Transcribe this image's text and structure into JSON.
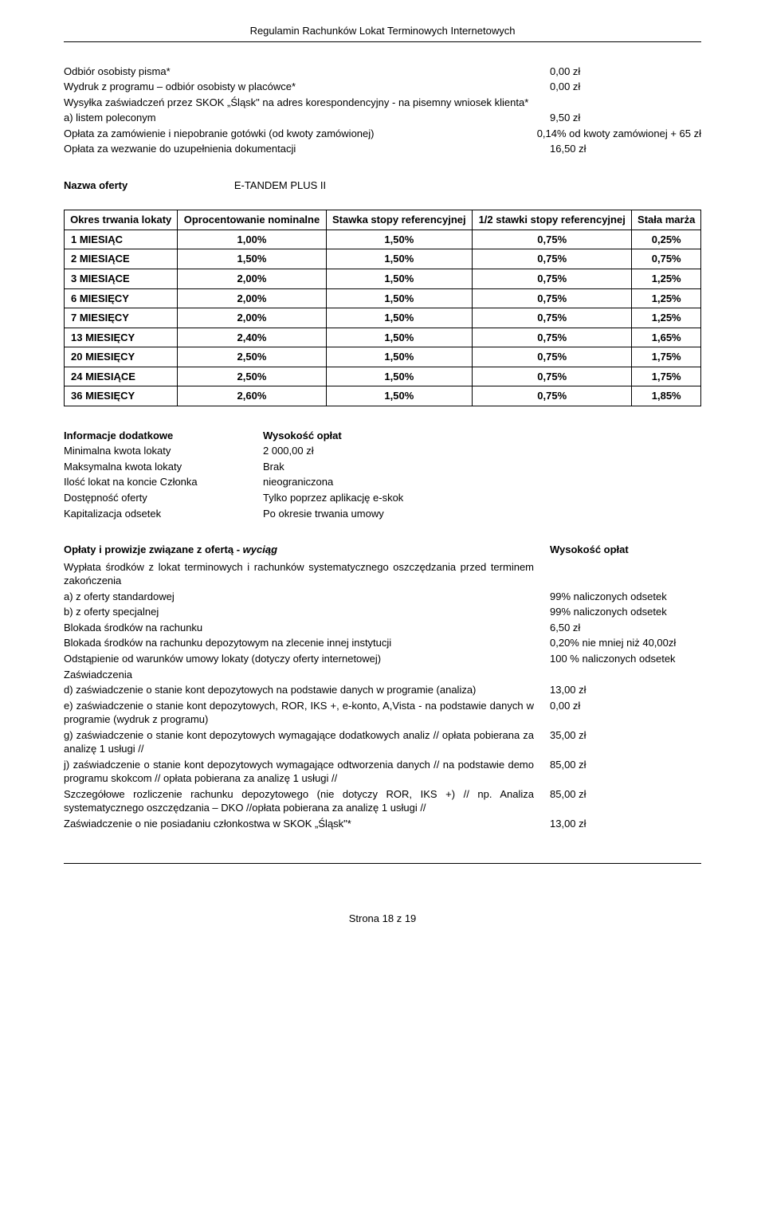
{
  "header_title": "Regulamin Rachunków Lokat Terminowych Internetowych",
  "fees_top": [
    {
      "label": "Odbiór osobisty pisma*",
      "value": "0,00 zł"
    },
    {
      "label": "Wydruk z programu – odbiór osobisty w placówce*",
      "value": "0,00 zł"
    },
    {
      "label": "Wysyłka zaświadczeń przez SKOK „Śląsk\" na adres korespondencyjny - na pisemny wniosek klienta*",
      "value": ""
    },
    {
      "label": "a) listem poleconym",
      "value": "9,50 zł"
    },
    {
      "label": "Opłata za zamówienie i niepobranie gotówki (od kwoty zamówionej)",
      "value": "0,14% od kwoty zamówionej + 65 zł"
    },
    {
      "label": "Opłata za wezwanie do uzupełnienia dokumentacji",
      "value": "16,50 zł"
    }
  ],
  "offer_name_label": "Nazwa oferty",
  "offer_name_value": "E-TANDEM PLUS II",
  "rates_table": {
    "columns": [
      "Okres trwania lokaty",
      "Oprocentowanie nominalne",
      "Stawka stopy referencyjnej",
      "1/2 stawki stopy referencyjnej",
      "Stała marża"
    ],
    "rows": [
      [
        "1 MIESIĄC",
        "1,00%",
        "1,50%",
        "0,75%",
        "0,25%"
      ],
      [
        "2 MIESIĄCE",
        "1,50%",
        "1,50%",
        "0,75%",
        "0,75%"
      ],
      [
        "3 MIESIĄCE",
        "2,00%",
        "1,50%",
        "0,75%",
        "1,25%"
      ],
      [
        "6 MIESIĘCY",
        "2,00%",
        "1,50%",
        "0,75%",
        "1,25%"
      ],
      [
        "7 MIESIĘCY",
        "2,00%",
        "1,50%",
        "0,75%",
        "1,25%"
      ],
      [
        "13 MIESIĘCY",
        "2,40%",
        "1,50%",
        "0,75%",
        "1,65%"
      ],
      [
        "20 MIESIĘCY",
        "2,50%",
        "1,50%",
        "0,75%",
        "1,75%"
      ],
      [
        "24 MIESIĄCE",
        "2,50%",
        "1,50%",
        "0,75%",
        "1,75%"
      ],
      [
        "36 MIESIĘCY",
        "2,60%",
        "1,50%",
        "0,75%",
        "1,85%"
      ]
    ]
  },
  "info_heading_left": "Informacje dodatkowe",
  "info_heading_right": "Wysokość opłat",
  "info_rows": [
    {
      "l": "Minimalna kwota lokaty",
      "r": "2 000,00 zł"
    },
    {
      "l": "Maksymalna kwota lokaty",
      "r": "Brak"
    },
    {
      "l": "Ilość lokat na koncie Członka",
      "r": "nieograniczona"
    },
    {
      "l": "Dostępność oferty",
      "r": "Tylko poprzez aplikację e-skok"
    },
    {
      "l": "Kapitalizacja odsetek",
      "r": "Po okresie trwania umowy"
    }
  ],
  "fees2_heading_left_pre": "Opłaty i prowizje związane z ofertą - ",
  "fees2_heading_left_italic": "wyciąg",
  "fees2_heading_right": "Wysokość opłat",
  "fees2_rows": [
    {
      "label": "Wypłata środków z lokat terminowych i rachunków systematycznego oszczędzania przed terminem zakończenia",
      "value": ""
    },
    {
      "label": "a) z oferty standardowej",
      "value": "99% naliczonych odsetek"
    },
    {
      "label": "b) z oferty specjalnej",
      "value": "99% naliczonych odsetek"
    },
    {
      "label": "Blokada środków na rachunku",
      "value": "6,50 zł"
    },
    {
      "label": "Blokada środków na rachunku depozytowym na zlecenie innej instytucji",
      "value": "0,20% nie mniej niż 40,00zł"
    },
    {
      "label": "Odstąpienie od warunków umowy lokaty (dotyczy oferty internetowej)",
      "value": "100 % naliczonych odsetek"
    },
    {
      "label": "Zaświadczenia",
      "value": ""
    },
    {
      "label": "d) zaświadczenie o stanie kont depozytowych na podstawie danych w programie (analiza)",
      "value": "13,00 zł"
    },
    {
      "label": "e) zaświadczenie o stanie kont depozytowych, ROR, IKS +, e-konto, A,Vista - na podstawie danych w programie (wydruk z programu)",
      "value": "0,00 zł"
    },
    {
      "label": "g) zaświadczenie o stanie kont depozytowych wymagające dodatkowych analiz // opłata pobierana za analizę 1 usługi //",
      "value": "35,00 zł"
    },
    {
      "label": "j) zaświadczenie o stanie kont depozytowych wymagające odtworzenia danych // na podstawie demo programu skokcom // opłata pobierana za analizę 1 usługi //",
      "value": "85,00 zł"
    },
    {
      "label": "Szczegółowe rozliczenie rachunku depozytowego (nie dotyczy ROR, IKS +) // np. Analiza systematycznego oszczędzania – DKO //opłata pobierana za analizę 1 usługi //",
      "value": "85,00 zł"
    },
    {
      "label": "Zaświadczenie o nie posiadaniu członkostwa w SKOK „Śląsk\"*",
      "value": "13,00 zł"
    }
  ],
  "footer_text": "Strona 18 z 19",
  "style": {
    "body_font_size": 13,
    "body_font_family": "Arial, Helvetica, sans-serif",
    "text_color": "#000000",
    "background_color": "#ffffff",
    "table_border_color": "#000000"
  }
}
